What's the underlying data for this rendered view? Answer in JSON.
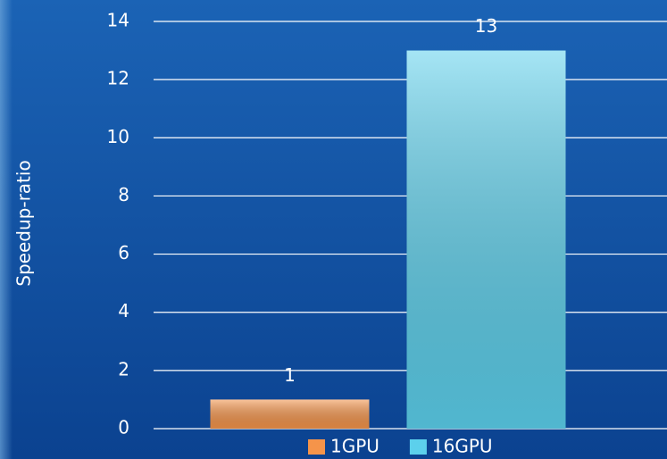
{
  "chart_data": {
    "type": "bar",
    "y_label": "Speedup-ratio",
    "categories": [
      null
    ],
    "series": [
      {
        "name": "1GPU",
        "color": "#f5944a",
        "values": [
          1
        ]
      },
      {
        "name": "16GPU",
        "color": "#5cd0ec",
        "values": [
          13
        ]
      }
    ],
    "ylim": [
      0,
      14
    ],
    "yticks": [
      0,
      2,
      4,
      6,
      8,
      10,
      12,
      14
    ],
    "grid": true,
    "legend": "bottom"
  }
}
